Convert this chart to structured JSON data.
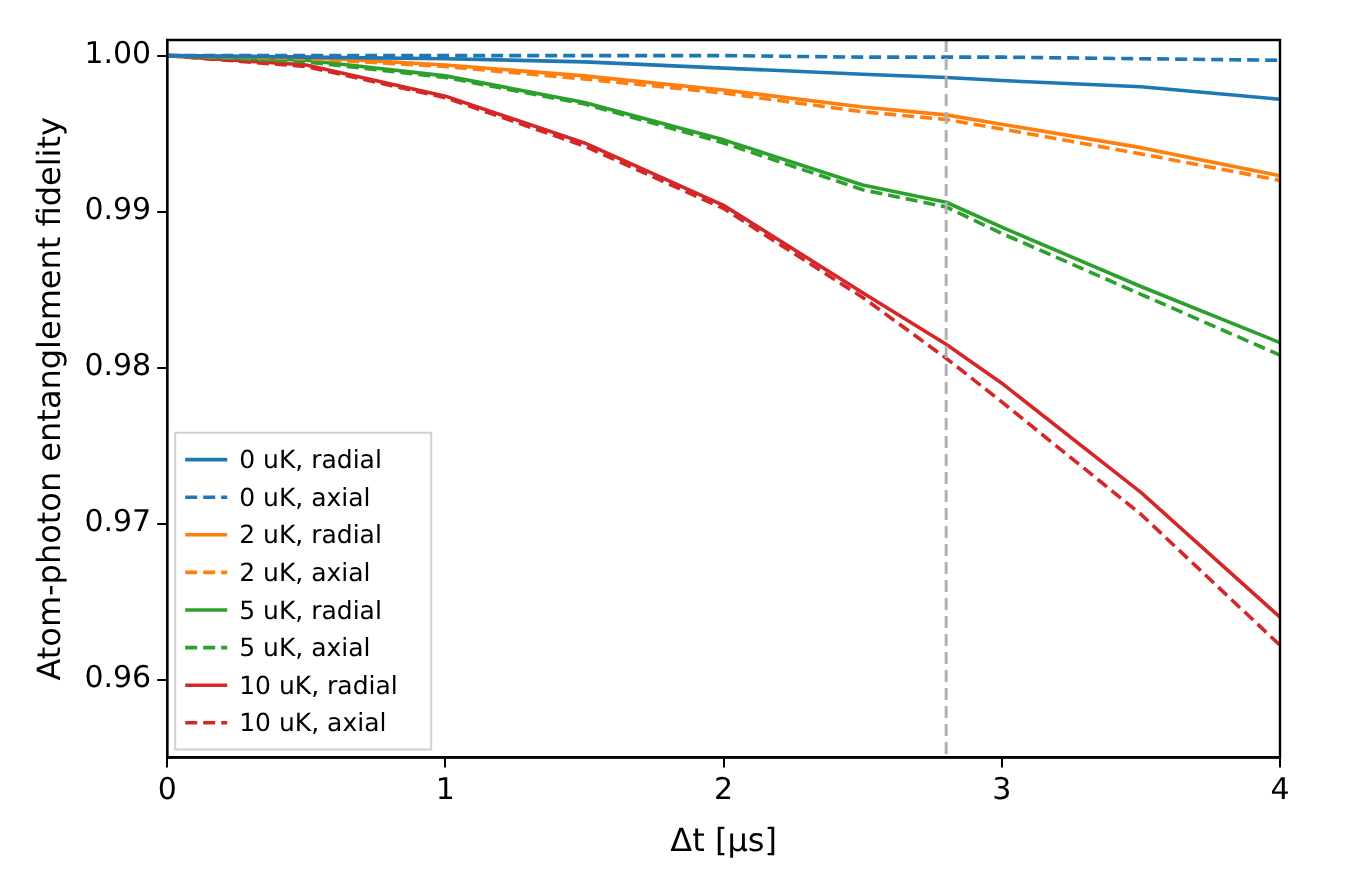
{
  "chart_data": {
    "type": "line",
    "xlabel": "Δt [μs]",
    "ylabel": "Atom-photon entanglement fidelity",
    "x": [
      0,
      0.5,
      1,
      1.5,
      2,
      2.5,
      2.8,
      3,
      3.5,
      4
    ],
    "series": [
      {
        "name": "0 uK, radial",
        "color": "#1f77b4",
        "line_style": "solid",
        "values": [
          1,
          0.9999,
          0.9998,
          0.9996,
          0.9992,
          0.9988,
          0.9986,
          0.9984,
          0.998,
          0.9972
        ]
      },
      {
        "name": "0 uK, axial",
        "color": "#1f77b4",
        "line_style": "dashed",
        "values": [
          1,
          1,
          1,
          1,
          1,
          0.9999,
          0.9999,
          0.9999,
          0.9998,
          0.9997
        ]
      },
      {
        "name": "2 uK, radial",
        "color": "#ff7f0e",
        "line_style": "solid",
        "values": [
          1,
          0.9999,
          0.9994,
          0.9987,
          0.9978,
          0.9967,
          0.9962,
          0.9956,
          0.9941,
          0.9923
        ]
      },
      {
        "name": "2 uK, axial",
        "color": "#ff7f0e",
        "line_style": "dashed",
        "values": [
          1,
          0.9998,
          0.9993,
          0.9985,
          0.9976,
          0.9964,
          0.9959,
          0.9953,
          0.9937,
          0.992
        ]
      },
      {
        "name": "5 uK, radial",
        "color": "#2ca02c",
        "line_style": "solid",
        "values": [
          1,
          0.9997,
          0.9987,
          0.997,
          0.9946,
          0.9917,
          0.9906,
          0.989,
          0.9852,
          0.9816
        ]
      },
      {
        "name": "5 uK, axial",
        "color": "#2ca02c",
        "line_style": "dashed",
        "values": [
          1,
          0.9996,
          0.9986,
          0.9969,
          0.9944,
          0.9914,
          0.9903,
          0.9886,
          0.9847,
          0.9808
        ]
      },
      {
        "name": "10 uK, radial",
        "color": "#d62728",
        "line_style": "solid",
        "values": [
          1,
          0.9994,
          0.9974,
          0.9944,
          0.9904,
          0.9848,
          0.9815,
          0.979,
          0.972,
          0.964
        ]
      },
      {
        "name": "10 uK, axial",
        "color": "#d62728",
        "line_style": "dashed",
        "values": [
          1,
          0.9993,
          0.9973,
          0.9942,
          0.9902,
          0.9845,
          0.9806,
          0.9778,
          0.9706,
          0.9622
        ]
      }
    ],
    "xlim": [
      0,
      4
    ],
    "xticks": [
      0,
      1,
      2,
      3,
      4
    ],
    "ylim": [
      0.955,
      1.001
    ],
    "yticks": [
      {
        "value": 0.96,
        "label": "0.96"
      },
      {
        "value": 0.97,
        "label": "0.97"
      },
      {
        "value": 0.98,
        "label": "0.98"
      },
      {
        "value": 0.99,
        "label": "0.99"
      },
      {
        "value": 1,
        "label": "1.00"
      }
    ],
    "ref_lines": [
      {
        "axis": "x",
        "value": 2.8,
        "color": "#b0b0b0",
        "line_style": "dashed"
      }
    ],
    "legend": "bottom left",
    "grid": false
  }
}
